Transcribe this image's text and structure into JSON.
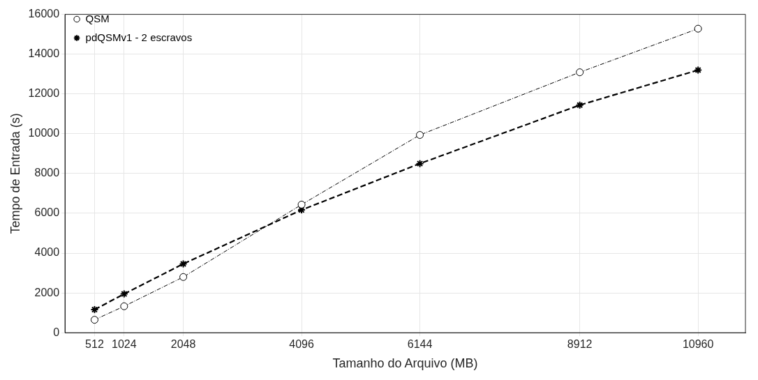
{
  "chart_data": {
    "type": "line",
    "xlabel": "Tamanho do Arquivo (MB)",
    "ylabel": "Tempo de Entrada (s)",
    "x": [
      512,
      1024,
      2048,
      4096,
      6144,
      8912,
      10960
    ],
    "series": [
      {
        "name": "QSM",
        "color": "#000000",
        "marker": "circle",
        "line_style": "dotted",
        "values": [
          650,
          1330,
          2800,
          6440,
          9940,
          13090,
          15280
        ]
      },
      {
        "name": "pdQSMv1 - 2 escravos",
        "color": "#000000",
        "marker": "cross",
        "line_style": "dashed",
        "values": [
          1160,
          1950,
          3460,
          6170,
          8500,
          11440,
          13200
        ]
      }
    ],
    "xlim": [
      0,
      11780
    ],
    "xticks": [
      512,
      1024,
      2048,
      4096,
      6144,
      8912,
      10960
    ],
    "ylim": [
      0,
      16000
    ],
    "yticks": [
      0,
      2000,
      4000,
      6000,
      8000,
      10000,
      12000,
      14000,
      16000
    ],
    "grid": true,
    "legend": "top left"
  }
}
